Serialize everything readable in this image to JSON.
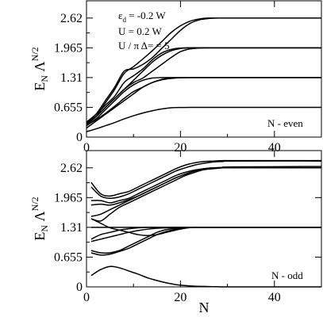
{
  "chart_data": [
    {
      "type": "line",
      "title": "",
      "xlabel": "",
      "ylabel": "E_N Λ^{N/2}",
      "xlim": [
        0,
        50
      ],
      "ylim": [
        0,
        3.0
      ],
      "xticks": [
        0,
        20,
        40
      ],
      "yticks": [
        0,
        0.655,
        1.31,
        1.965,
        2.62
      ],
      "ytick_labels": [
        "0",
        "0.655",
        "1.31",
        "1.965",
        "2.62"
      ],
      "annotations": [
        "ε_d = -0.2 W",
        "U = 0.2 W",
        "U / π Δ= = 5"
      ],
      "corner_label": "N - even",
      "grid": false,
      "series": [
        {
          "x": [
            0,
            2,
            4,
            6,
            8,
            10,
            12,
            14,
            16,
            18,
            20,
            22,
            24,
            26,
            28,
            30,
            50
          ],
          "y": [
            0.28,
            0.45,
            0.75,
            1.05,
            1.4,
            1.55,
            1.72,
            1.9,
            2.1,
            2.3,
            2.45,
            2.55,
            2.6,
            2.62,
            2.62,
            2.62,
            2.62
          ]
        },
        {
          "x": [
            0,
            2,
            4,
            6,
            8,
            10,
            12,
            14,
            16,
            18,
            20,
            22,
            24,
            26,
            28,
            30,
            50
          ],
          "y": [
            0.3,
            0.5,
            0.8,
            1.1,
            1.45,
            1.5,
            1.6,
            1.75,
            1.95,
            2.15,
            2.35,
            2.5,
            2.58,
            2.61,
            2.62,
            2.62,
            2.62
          ]
        },
        {
          "x": [
            0,
            2,
            4,
            6,
            8,
            10,
            12,
            14,
            16,
            18,
            20,
            22,
            24,
            26,
            28,
            30,
            50
          ],
          "y": [
            0.33,
            0.5,
            0.7,
            0.9,
            1.2,
            1.35,
            1.5,
            1.7,
            1.85,
            1.93,
            1.96,
            1.965,
            1.965,
            1.965,
            1.965,
            1.965,
            1.965
          ]
        },
        {
          "x": [
            0,
            2,
            4,
            6,
            8,
            10,
            12,
            14,
            16,
            18,
            20,
            22,
            24,
            26,
            28,
            30,
            50
          ],
          "y": [
            0.32,
            0.45,
            0.65,
            0.85,
            1.05,
            1.25,
            1.45,
            1.65,
            1.8,
            1.9,
            1.95,
            1.965,
            1.965,
            1.965,
            1.965,
            1.965,
            1.965
          ]
        },
        {
          "x": [
            0,
            2,
            4,
            6,
            8,
            10,
            12,
            14,
            16,
            18,
            20,
            22,
            24,
            26,
            28,
            30,
            50
          ],
          "y": [
            0.25,
            0.4,
            0.6,
            0.8,
            1.0,
            1.15,
            1.25,
            1.3,
            1.31,
            1.31,
            1.31,
            1.31,
            1.31,
            1.31,
            1.31,
            1.31,
            1.31
          ]
        },
        {
          "x": [
            0,
            2,
            4,
            6,
            8,
            10,
            12,
            14,
            16,
            18,
            20,
            22,
            24,
            26,
            28,
            30,
            50
          ],
          "y": [
            0.2,
            0.35,
            0.5,
            0.65,
            0.8,
            0.95,
            1.1,
            1.2,
            1.27,
            1.3,
            1.31,
            1.31,
            1.31,
            1.31,
            1.31,
            1.31,
            1.31
          ]
        },
        {
          "x": [
            0,
            2,
            4,
            6,
            8,
            10,
            12,
            14,
            16,
            18,
            20,
            22,
            24,
            26,
            28,
            30,
            50
          ],
          "y": [
            0.3,
            0.45,
            0.65,
            0.85,
            1.05,
            1.2,
            1.3,
            1.45,
            1.6,
            1.75,
            1.88,
            1.94,
            1.96,
            1.965,
            1.965,
            1.965,
            1.965
          ]
        },
        {
          "x": [
            0,
            2,
            4,
            6,
            8,
            10,
            12,
            14,
            16,
            18,
            20,
            22,
            24,
            26,
            28,
            30,
            50
          ],
          "y": [
            0.12,
            0.18,
            0.25,
            0.32,
            0.4,
            0.47,
            0.53,
            0.58,
            0.62,
            0.645,
            0.652,
            0.655,
            0.655,
            0.655,
            0.655,
            0.655,
            0.655
          ]
        },
        {
          "x": [
            0,
            2,
            4,
            6,
            8,
            10,
            12,
            14,
            16,
            18,
            20,
            22,
            24,
            26,
            28,
            30,
            50
          ],
          "y": [
            0.26,
            0.38,
            0.52,
            0.68,
            0.85,
            1.0,
            1.1,
            1.2,
            1.26,
            1.29,
            1.305,
            1.31,
            1.31,
            1.31,
            1.31,
            1.31,
            1.31
          ]
        }
      ]
    },
    {
      "type": "line",
      "title": "",
      "xlabel": "N",
      "ylabel": "E_N Λ^{N/2}",
      "xlim": [
        0,
        50
      ],
      "ylim": [
        0,
        3.0
      ],
      "xticks": [
        0,
        20,
        40
      ],
      "yticks": [
        0,
        0.655,
        1.31,
        1.965,
        2.62
      ],
      "ytick_labels": [
        "0",
        "0.655",
        "1.31",
        "1.965",
        "2.62"
      ],
      "corner_label": "N - odd",
      "grid": false,
      "series": [
        {
          "x": [
            1,
            3,
            5,
            7,
            9,
            11,
            13,
            15,
            17,
            19,
            21,
            23,
            25,
            27,
            29,
            31,
            50
          ],
          "y": [
            2.3,
            2.05,
            2.0,
            2.05,
            2.1,
            2.2,
            2.3,
            2.4,
            2.5,
            2.6,
            2.68,
            2.73,
            2.76,
            2.77,
            2.78,
            2.78,
            2.78
          ]
        },
        {
          "x": [
            1,
            3,
            5,
            7,
            9,
            11,
            13,
            15,
            17,
            19,
            21,
            23,
            25,
            27,
            29,
            31,
            50
          ],
          "y": [
            2.2,
            2.0,
            1.95,
            1.98,
            2.05,
            2.15,
            2.25,
            2.35,
            2.45,
            2.55,
            2.62,
            2.68,
            2.72,
            2.75,
            2.76,
            2.77,
            2.77
          ]
        },
        {
          "x": [
            1,
            3,
            5,
            7,
            9,
            11,
            13,
            15,
            17,
            19,
            21,
            23,
            25,
            27,
            29,
            31,
            50
          ],
          "y": [
            1.9,
            1.9,
            1.85,
            1.9,
            1.95,
            2.05,
            2.15,
            2.25,
            2.35,
            2.45,
            2.52,
            2.57,
            2.6,
            2.62,
            2.62,
            2.62,
            2.62
          ]
        },
        {
          "x": [
            1,
            3,
            5,
            7,
            9,
            11,
            13,
            15,
            17,
            19,
            21,
            23,
            25,
            27,
            29,
            31,
            50
          ],
          "y": [
            1.8,
            1.82,
            1.8,
            1.85,
            1.92,
            2.0,
            2.1,
            2.2,
            2.3,
            2.4,
            2.48,
            2.55,
            2.59,
            2.61,
            2.62,
            2.62,
            2.62
          ]
        },
        {
          "x": [
            1,
            3,
            5,
            7,
            9,
            11,
            13,
            15,
            17,
            19,
            21,
            23,
            25,
            27,
            29,
            31,
            50
          ],
          "y": [
            1.55,
            1.6,
            1.7,
            1.8,
            1.9,
            2.0,
            2.1,
            2.2,
            2.3,
            2.4,
            2.48,
            2.55,
            2.6,
            2.62,
            2.63,
            2.64,
            2.65
          ]
        },
        {
          "x": [
            1,
            3,
            5,
            7,
            9,
            11,
            13,
            15,
            17,
            19,
            21,
            23,
            25,
            27,
            29,
            31,
            50
          ],
          "y": [
            1.5,
            1.45,
            1.6,
            1.75,
            1.85,
            1.95,
            2.05,
            2.15,
            2.25,
            2.35,
            2.45,
            2.52,
            2.58,
            2.6,
            2.62,
            2.62,
            2.62
          ]
        },
        {
          "x": [
            1,
            3,
            5,
            7,
            9,
            11,
            13,
            15,
            17,
            19,
            21,
            23,
            25,
            27,
            29,
            31,
            50
          ],
          "y": [
            1.5,
            1.4,
            1.3,
            1.25,
            1.2,
            1.15,
            1.13,
            1.15,
            1.2,
            1.25,
            1.29,
            1.31,
            1.31,
            1.31,
            1.31,
            1.31,
            1.31
          ]
        },
        {
          "x": [
            1,
            3,
            5,
            7,
            9,
            11,
            13,
            15,
            17,
            19,
            21,
            23,
            25,
            27,
            29,
            31,
            50
          ],
          "y": [
            1.31,
            1.31,
            1.31,
            1.31,
            1.31,
            1.31,
            1.31,
            1.31,
            1.31,
            1.31,
            1.31,
            1.31,
            1.31,
            1.31,
            1.31,
            1.31,
            1.31
          ]
        },
        {
          "x": [
            1,
            3,
            5,
            7,
            9,
            11,
            13,
            15,
            17,
            19,
            21,
            23,
            25,
            27,
            29,
            31,
            50
          ],
          "y": [
            1.05,
            1.15,
            1.2,
            1.25,
            1.28,
            1.3,
            1.31,
            1.31,
            1.31,
            1.31,
            1.31,
            1.31,
            1.31,
            1.31,
            1.31,
            1.31,
            1.31
          ]
        },
        {
          "x": [
            1,
            3,
            5,
            7,
            9,
            11,
            13,
            15,
            17,
            19,
            21,
            23,
            25,
            27,
            29,
            31,
            50
          ],
          "y": [
            1.0,
            1.05,
            1.1,
            1.15,
            1.2,
            1.24,
            1.27,
            1.29,
            1.3,
            1.31,
            1.31,
            1.31,
            1.31,
            1.31,
            1.31,
            1.31,
            1.31
          ]
        },
        {
          "x": [
            1,
            3,
            5,
            7,
            9,
            11,
            13,
            15,
            17,
            19,
            21,
            23,
            25,
            27,
            29,
            31,
            50
          ],
          "y": [
            0.8,
            0.75,
            0.75,
            0.8,
            0.9,
            1.0,
            1.1,
            1.2,
            1.26,
            1.29,
            1.31,
            1.31,
            1.31,
            1.31,
            1.31,
            1.31,
            1.31
          ]
        },
        {
          "x": [
            1,
            3,
            5,
            7,
            9,
            11,
            13,
            15,
            17,
            19,
            21,
            23,
            25,
            27,
            29,
            31,
            50
          ],
          "y": [
            0.75,
            0.7,
            0.72,
            0.78,
            0.85,
            0.95,
            1.05,
            1.15,
            1.22,
            1.27,
            1.3,
            1.31,
            1.31,
            1.31,
            1.31,
            1.31,
            1.31
          ]
        },
        {
          "x": [
            1,
            3,
            5,
            7,
            9,
            11,
            13,
            15,
            17,
            19,
            21,
            23,
            25,
            27,
            29,
            31,
            50
          ],
          "y": [
            0.25,
            0.38,
            0.45,
            0.42,
            0.35,
            0.28,
            0.2,
            0.14,
            0.09,
            0.05,
            0.03,
            0.015,
            0.01,
            0.005,
            0.0,
            0.0,
            0.0
          ]
        }
      ]
    }
  ]
}
